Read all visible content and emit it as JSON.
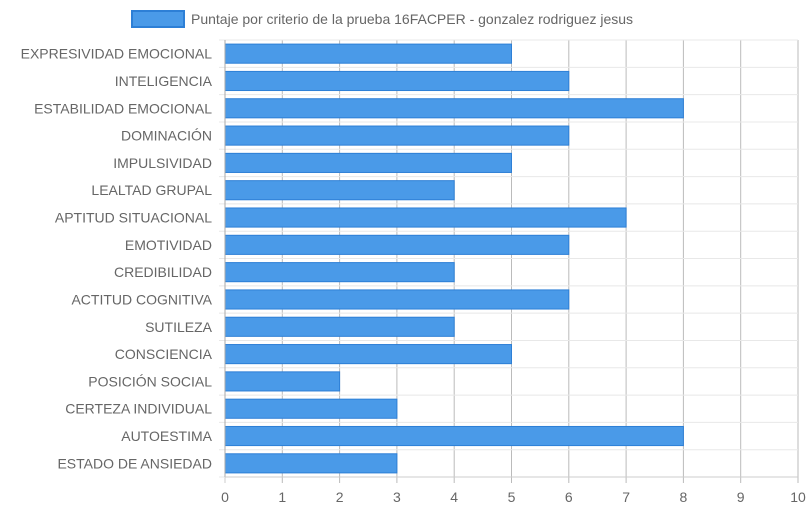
{
  "chart_data": {
    "type": "bar",
    "orientation": "horizontal",
    "title": "",
    "xlabel": "",
    "ylabel": "",
    "legend_position": "top-center",
    "grid": true,
    "xlim": [
      0,
      10
    ],
    "x_ticks": [
      "0",
      "1",
      "2",
      "3",
      "4",
      "5",
      "6",
      "7",
      "8",
      "9",
      "10"
    ],
    "categories": [
      "EXPRESIVIDAD EMOCIONAL",
      "INTELIGENCIA",
      "ESTABILIDAD EMOCIONAL",
      "DOMINACIÓN",
      "IMPULSIVIDAD",
      "LEALTAD GRUPAL",
      "APTITUD SITUACIONAL",
      "EMOTIVIDAD",
      "CREDIBILIDAD",
      "ACTITUD COGNITIVA",
      "SUTILEZA",
      "CONSCIENCIA",
      "POSICIÓN SOCIAL",
      "CERTEZA INDIVIDUAL",
      "AUTOESTIMA",
      "ESTADO DE ANSIEDAD"
    ],
    "series": [
      {
        "name": "Puntaje por criterio de la prueba 16FACPER - gonzalez rodriguez jesus",
        "color": "#4a9ae8",
        "border_color": "#2d7fd6",
        "values": [
          5,
          6,
          8,
          6,
          5,
          4,
          7,
          6,
          4,
          6,
          4,
          5,
          2,
          3,
          8,
          3
        ]
      }
    ]
  }
}
